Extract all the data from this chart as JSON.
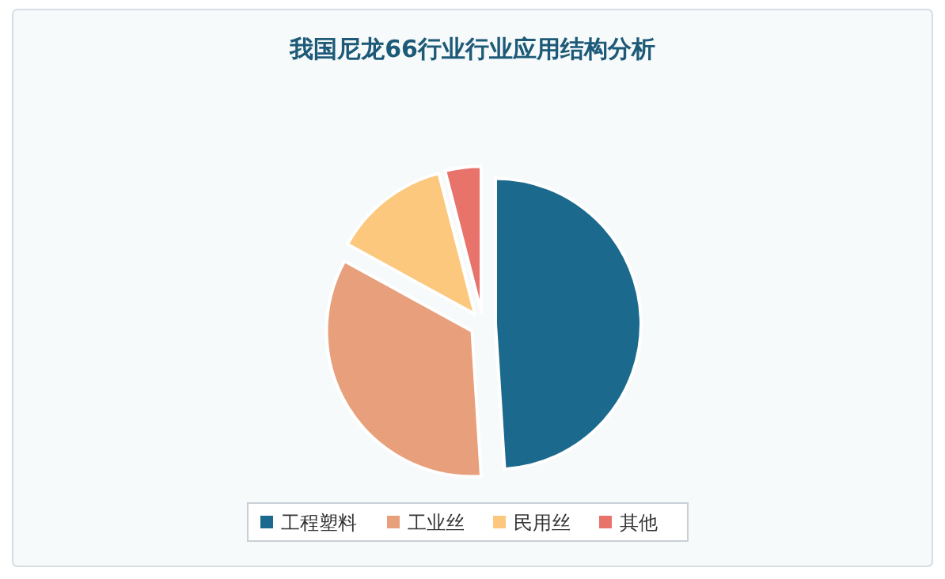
{
  "chart_data": {
    "type": "pie",
    "title": "我国尼龙66行业行业应用结构分析",
    "categories": [
      "工程塑料",
      "工业丝",
      "民用丝",
      "其他"
    ],
    "values": [
      49,
      34,
      13,
      4
    ],
    "colors": [
      "#1b6a8e",
      "#e8a07c",
      "#fbc87d",
      "#e8736a"
    ],
    "legend": "bottom"
  }
}
